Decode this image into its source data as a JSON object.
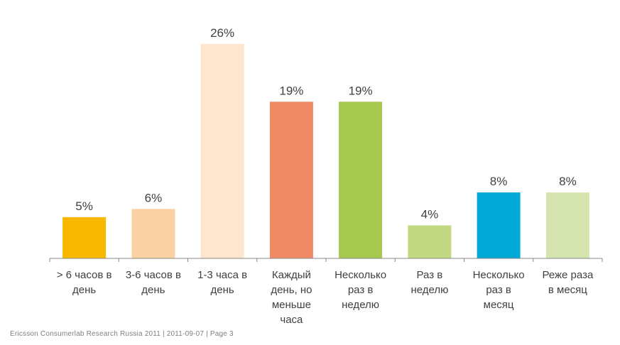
{
  "chart_data": {
    "type": "bar",
    "categories": [
      "> 6 часов в день",
      "3-6 часов в день",
      "1-3 часа в день",
      "Каждый день, но меньше часа",
      "Несколько раз в неделю",
      "Раз в неделю",
      "Несколько раз в месяц",
      "Реже раза в месяц"
    ],
    "category_lines": [
      [
        "> 6 часов в",
        "день"
      ],
      [
        "3-6 часов в",
        "день"
      ],
      [
        "1-3 часа в",
        "день"
      ],
      [
        "Каждый",
        "день, но",
        "меньше",
        "часа"
      ],
      [
        "Несколько",
        "раз в",
        "неделю"
      ],
      [
        "Раз в",
        "неделю"
      ],
      [
        "Несколько",
        "раз в",
        "месяц"
      ],
      [
        "Реже раза",
        "в месяц"
      ]
    ],
    "values": [
      5,
      6,
      26,
      19,
      19,
      4,
      8,
      8
    ],
    "value_labels": [
      "5%",
      "6%",
      "26%",
      "19%",
      "19%",
      "4%",
      "8%",
      "8%"
    ],
    "colors": [
      "#F8B800",
      "#FAD1A2",
      "#FDE5CE",
      "#F08A64",
      "#A6C84E",
      "#C2D882",
      "#00A9D6",
      "#D6E5AF"
    ],
    "ylim": [
      0,
      26
    ],
    "grid": false,
    "legend": "none"
  },
  "footer": "Ericsson Consumerlab Research Russia 2011  |  2011-09-07  |  Page 3"
}
